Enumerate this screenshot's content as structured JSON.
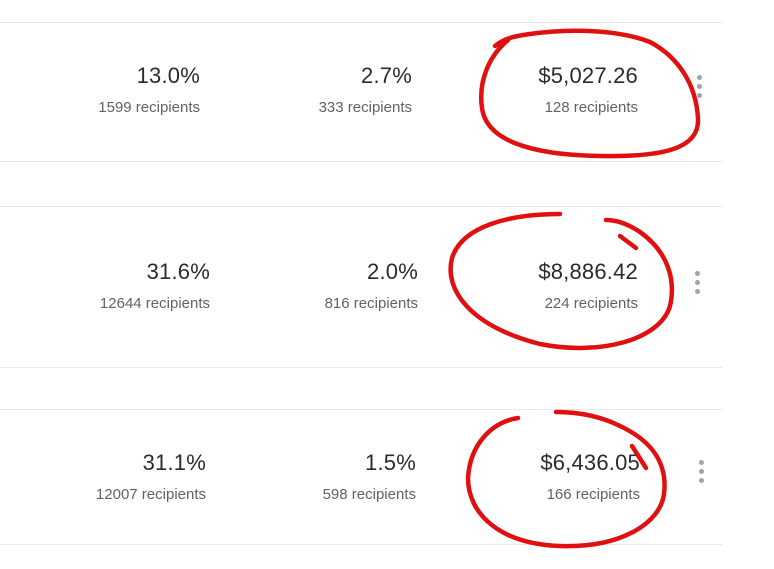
{
  "rows": [
    {
      "open_rate": {
        "value": "13.0%",
        "recipients": "1599 recipients"
      },
      "click_rate": {
        "value": "2.7%",
        "recipients": "333 recipients"
      },
      "revenue": {
        "value": "$5,027.26",
        "recipients": "128 recipients"
      }
    },
    {
      "open_rate": {
        "value": "31.6%",
        "recipients": "12644 recipients"
      },
      "click_rate": {
        "value": "2.0%",
        "recipients": "816 recipients"
      },
      "revenue": {
        "value": "$8,886.42",
        "recipients": "224 recipients"
      }
    },
    {
      "open_rate": {
        "value": "31.1%",
        "recipients": "12007 recipients"
      },
      "click_rate": {
        "value": "1.5%",
        "recipients": "598 recipients"
      },
      "revenue": {
        "value": "$6,436.05",
        "recipients": "166 recipients"
      }
    }
  ],
  "icons": {
    "row_menu": "kebab-vertical-icon"
  },
  "colors": {
    "annotation": "#e01010",
    "divider": "#e7e7e7",
    "secondary_text": "#5f6368"
  }
}
